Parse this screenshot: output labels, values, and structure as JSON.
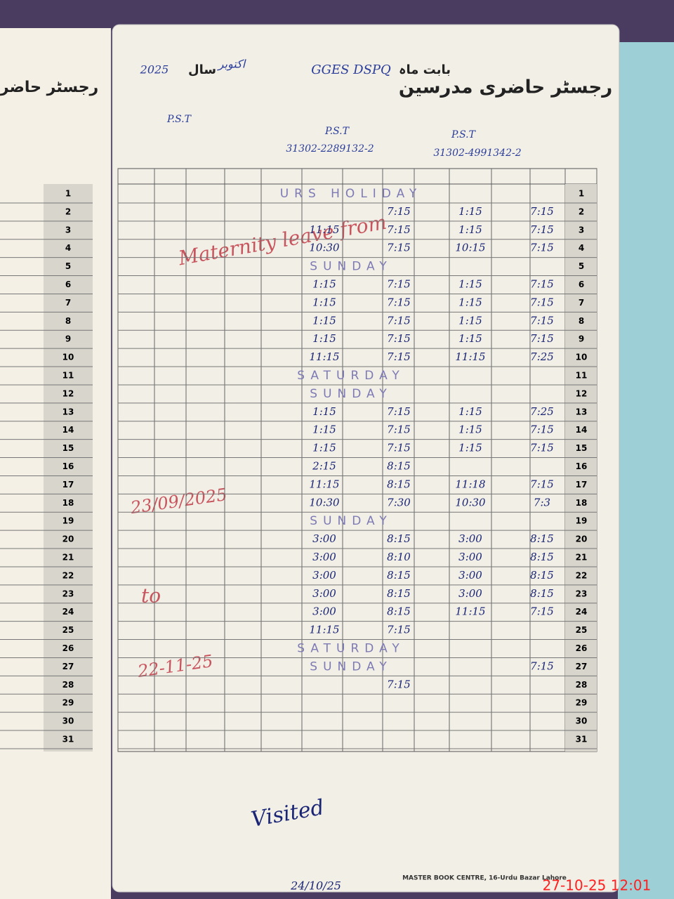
{
  "header": {
    "title": "رجسٹر حاضری مدرسین",
    "month_label": "بابت ماہ",
    "month": "اکتوبر",
    "year_label": "سال",
    "year": "2025",
    "school": "GGES DSPQ",
    "left_title": "رجسٹر حاضری"
  },
  "teachers": [
    {
      "designation": "P.S.T",
      "cnic": "31302-4991342-2"
    },
    {
      "designation": "P.S.T",
      "cnic": "31302-2289132-2"
    },
    {
      "designation": "P.S.T"
    }
  ],
  "rows": [
    {
      "day": "1",
      "label": "URS HOLIDAY"
    },
    {
      "day": "2",
      "a": "7:15",
      "b": "1:15",
      "c1": "7:15"
    },
    {
      "day": "3",
      "a": "7:15",
      "b": "1:15",
      "c1": "7:15",
      "c2": "11:15"
    },
    {
      "day": "4",
      "a": "7:15",
      "b": "10:15",
      "c1": "7:15",
      "c2": "10:30"
    },
    {
      "day": "5",
      "label": "SUNDAY"
    },
    {
      "day": "6",
      "a": "7:15",
      "b": "1:15",
      "c1": "7:15",
      "c2": "1:15"
    },
    {
      "day": "7",
      "a": "7:15",
      "b": "1:15",
      "c1": "7:15",
      "c2": "1:15"
    },
    {
      "day": "8",
      "a": "7:15",
      "b": "1:15",
      "c1": "7:15",
      "c2": "1:15"
    },
    {
      "day": "9",
      "a": "7:15",
      "b": "1:15",
      "c1": "7:15",
      "c2": "1:15"
    },
    {
      "day": "10",
      "a": "7:25",
      "b": "11:15",
      "c1": "7:15",
      "c2": "11:15"
    },
    {
      "day": "11",
      "label": "SATURDAY"
    },
    {
      "day": "12",
      "label": "SUNDAY"
    },
    {
      "day": "13",
      "a": "7:25",
      "b": "1:15",
      "c1": "7:15",
      "c2": "1:15"
    },
    {
      "day": "14",
      "a": "7:15",
      "b": "1:15",
      "c1": "7:15",
      "c2": "1:15"
    },
    {
      "day": "15",
      "a": "7:15",
      "b": "1:15",
      "c1": "7:15",
      "c2": "1:15"
    },
    {
      "day": "16",
      "c1": "8:15",
      "c2": "2:15"
    },
    {
      "day": "17",
      "a": "7:15",
      "b": "11:18",
      "c1": "8:15",
      "c2": "11:15"
    },
    {
      "day": "18",
      "a": "7:3",
      "b": "10:30",
      "c1": "7:30",
      "c2": "10:30"
    },
    {
      "day": "19",
      "label": "SUNDAY"
    },
    {
      "day": "20",
      "a": "8:15",
      "b": "3:00",
      "c1": "8:15",
      "c2": "3:00"
    },
    {
      "day": "21",
      "a": "8:15",
      "b": "3:00",
      "c1": "8:10",
      "c2": "3:00"
    },
    {
      "day": "22",
      "a": "8:15",
      "b": "3:00",
      "c1": "8:15",
      "c2": "3:00"
    },
    {
      "day": "23",
      "a": "8:15",
      "b": "3:00",
      "c1": "8:15",
      "c2": "3:00"
    },
    {
      "day": "24",
      "a": "7:15",
      "b": "11:15",
      "c1": "8:15",
      "c2": "3:00"
    },
    {
      "day": "25",
      "c1": "7:15",
      "c2": "11:15"
    },
    {
      "day": "26",
      "label": "SATURDAY"
    },
    {
      "day": "27",
      "label": "SUNDAY",
      "a": "7:15"
    },
    {
      "day": "28",
      "c1": "7:15"
    },
    {
      "day": "29"
    },
    {
      "day": "30"
    },
    {
      "day": "31"
    }
  ],
  "notes": {
    "leave": "Maternity leave from",
    "from": "23/09/2025",
    "to_word": "to",
    "to": "22-11-25",
    "visited": "Visited",
    "visited_date": "24/10/25"
  },
  "footer": "MASTER BOOK CENTRE, 16-Urdu Bazar Lahore",
  "timestamp": "27-10-25 12:01"
}
